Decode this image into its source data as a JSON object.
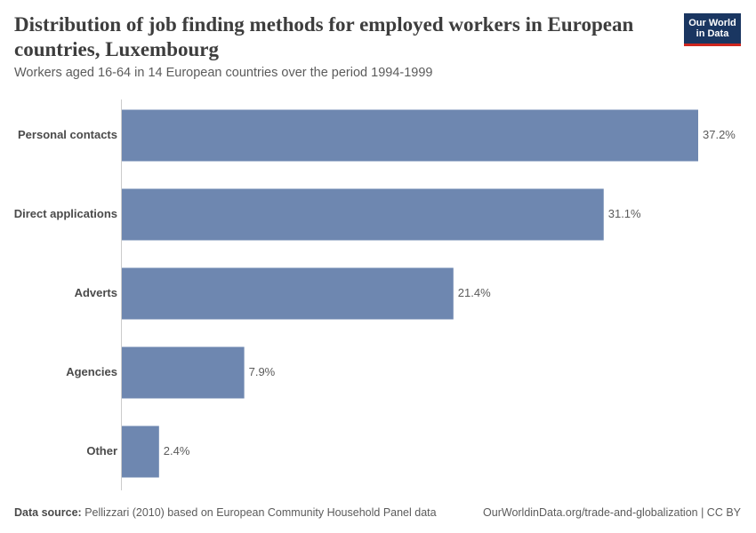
{
  "header": {
    "title": "Distribution of job finding methods for employed workers in European countries, Luxembourg",
    "subtitle": "Workers aged 16-64 in 14 European countries over the period 1994-1999",
    "logo": [
      "Our World",
      "in Data"
    ]
  },
  "chart_data": {
    "type": "bar",
    "orientation": "horizontal",
    "categories": [
      "Personal contacts",
      "Direct applications",
      "Adverts",
      "Agencies",
      "Other"
    ],
    "values": [
      37.2,
      31.1,
      21.4,
      7.9,
      2.4
    ],
    "value_labels": [
      "37.2%",
      "31.1%",
      "21.4%",
      "7.9%",
      "2.4%"
    ],
    "color": "#6e87b0"
  },
  "footer": {
    "source_label": "Data source:",
    "source": "Pellizzari (2010) based on European Community Household Panel data",
    "url": "OurWorldinData.org/trade-and-globalization | CC BY"
  }
}
